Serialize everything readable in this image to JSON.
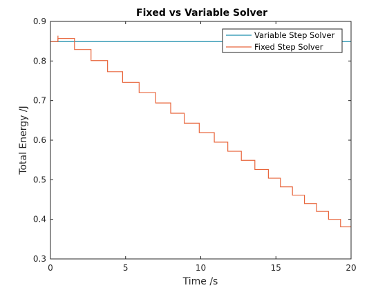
{
  "colors": {
    "variable": "#1f8fae",
    "fixed": "#e8643a",
    "axis": "#262626"
  },
  "chart_data": {
    "type": "line",
    "title": "Fixed vs Variable Solver",
    "xlabel": "Time /s",
    "ylabel": "Total Energy /J",
    "xlim": [
      0,
      20
    ],
    "ylim": [
      0.3,
      0.9
    ],
    "xticks": [
      0,
      5,
      10,
      15,
      20
    ],
    "yticks": [
      0.3,
      0.4,
      0.5,
      0.6,
      0.7,
      0.8,
      0.9
    ],
    "xtick_labels": [
      "0",
      "5",
      "10",
      "15",
      "20"
    ],
    "ytick_labels": [
      "0.3",
      "0.4",
      "0.5",
      "0.6",
      "0.7",
      "0.8",
      "0.9"
    ],
    "grid": false,
    "legend_position": "top-right",
    "series": [
      {
        "name": "Variable Step Solver",
        "style": "line",
        "x": [
          0,
          20
        ],
        "y": [
          0.849,
          0.849
        ]
      },
      {
        "name": "Fixed Step Solver",
        "style": "step",
        "x": [
          0,
          0.5,
          1.6,
          2.7,
          3.8,
          4.8,
          5.9,
          7.0,
          8.0,
          8.9,
          9.9,
          10.9,
          11.8,
          12.7,
          13.6,
          14.5,
          15.3,
          16.1,
          16.9,
          17.7,
          18.5,
          19.3,
          20
        ],
        "y": [
          0.849,
          0.857,
          0.829,
          0.801,
          0.773,
          0.746,
          0.72,
          0.694,
          0.668,
          0.643,
          0.619,
          0.595,
          0.572,
          0.549,
          0.526,
          0.504,
          0.482,
          0.461,
          0.44,
          0.42,
          0.4,
          0.381,
          0.381
        ]
      }
    ]
  }
}
